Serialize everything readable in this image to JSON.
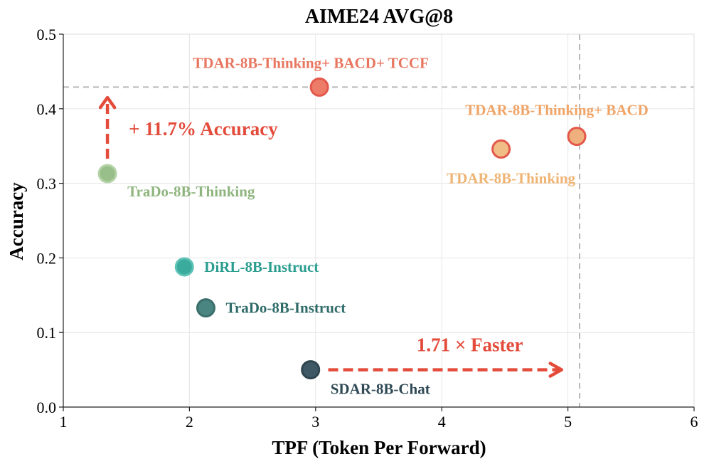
{
  "chart_data": {
    "type": "scatter",
    "title": "AIME24 AVG@8",
    "xlabel": "TPF (Token Per Forward)",
    "ylabel": "Accuracy",
    "xlim": [
      1,
      6
    ],
    "ylim": [
      0.0,
      0.5
    ],
    "xticks": [
      "1",
      "2",
      "3",
      "4",
      "5",
      "6"
    ],
    "yticks": [
      "0.0",
      "0.1",
      "0.2",
      "0.3",
      "0.4",
      "0.5"
    ],
    "grid": true,
    "points": [
      {
        "label": "SDAR-8B-Chat",
        "x": 2.96,
        "y": 0.05,
        "color": "#3e5965",
        "edge": "#2f4550",
        "label_color": "#2f4a55"
      },
      {
        "label": "TraDo-8B-Instruct",
        "x": 2.13,
        "y": 0.133,
        "color": "#4a8582",
        "edge": "#3b6f6c",
        "label_color": "#2f6b68"
      },
      {
        "label": "DiRL-8B-Instruct",
        "x": 1.96,
        "y": 0.188,
        "color": "#3aab9c",
        "edge": "#5fc2b6",
        "label_color": "#2a9d8f"
      },
      {
        "label": "TraDo-8B-Thinking",
        "x": 1.35,
        "y": 0.313,
        "color": "#98bf8a",
        "edge": "#b3d2a6",
        "label_color": "#8fb57f"
      },
      {
        "label": "TDAR-8B-Thinking",
        "x": 4.47,
        "y": 0.346,
        "color": "#efbd85",
        "edge": "#e3584a",
        "label_color": "#efb474"
      },
      {
        "label": "TDAR-8B-Thinking+ BACD",
        "x": 5.07,
        "y": 0.363,
        "color": "#efb07d",
        "edge": "#e3584a",
        "label_color": "#f0a467"
      },
      {
        "label": "TDAR-8B-Thinking+ BACD+ TCCF",
        "x": 3.03,
        "y": 0.429,
        "color": "#ec7b68",
        "edge": "#e3584a",
        "label_color": "#e8765f"
      }
    ],
    "reference_lines": {
      "y": 0.429,
      "x": 5.07,
      "color": "#b8b8b8"
    },
    "annotations": [
      {
        "text": "+ 11.7% Accuracy",
        "arrow": "up",
        "from": [
          1.35,
          0.333
        ],
        "to": [
          1.35,
          0.415
        ],
        "color": "#e34b3b"
      },
      {
        "text": "1.71 × Faster",
        "arrow": "right",
        "from": [
          3.1,
          0.05
        ],
        "to": [
          4.95,
          0.05
        ],
        "color": "#e34b3b"
      }
    ]
  }
}
